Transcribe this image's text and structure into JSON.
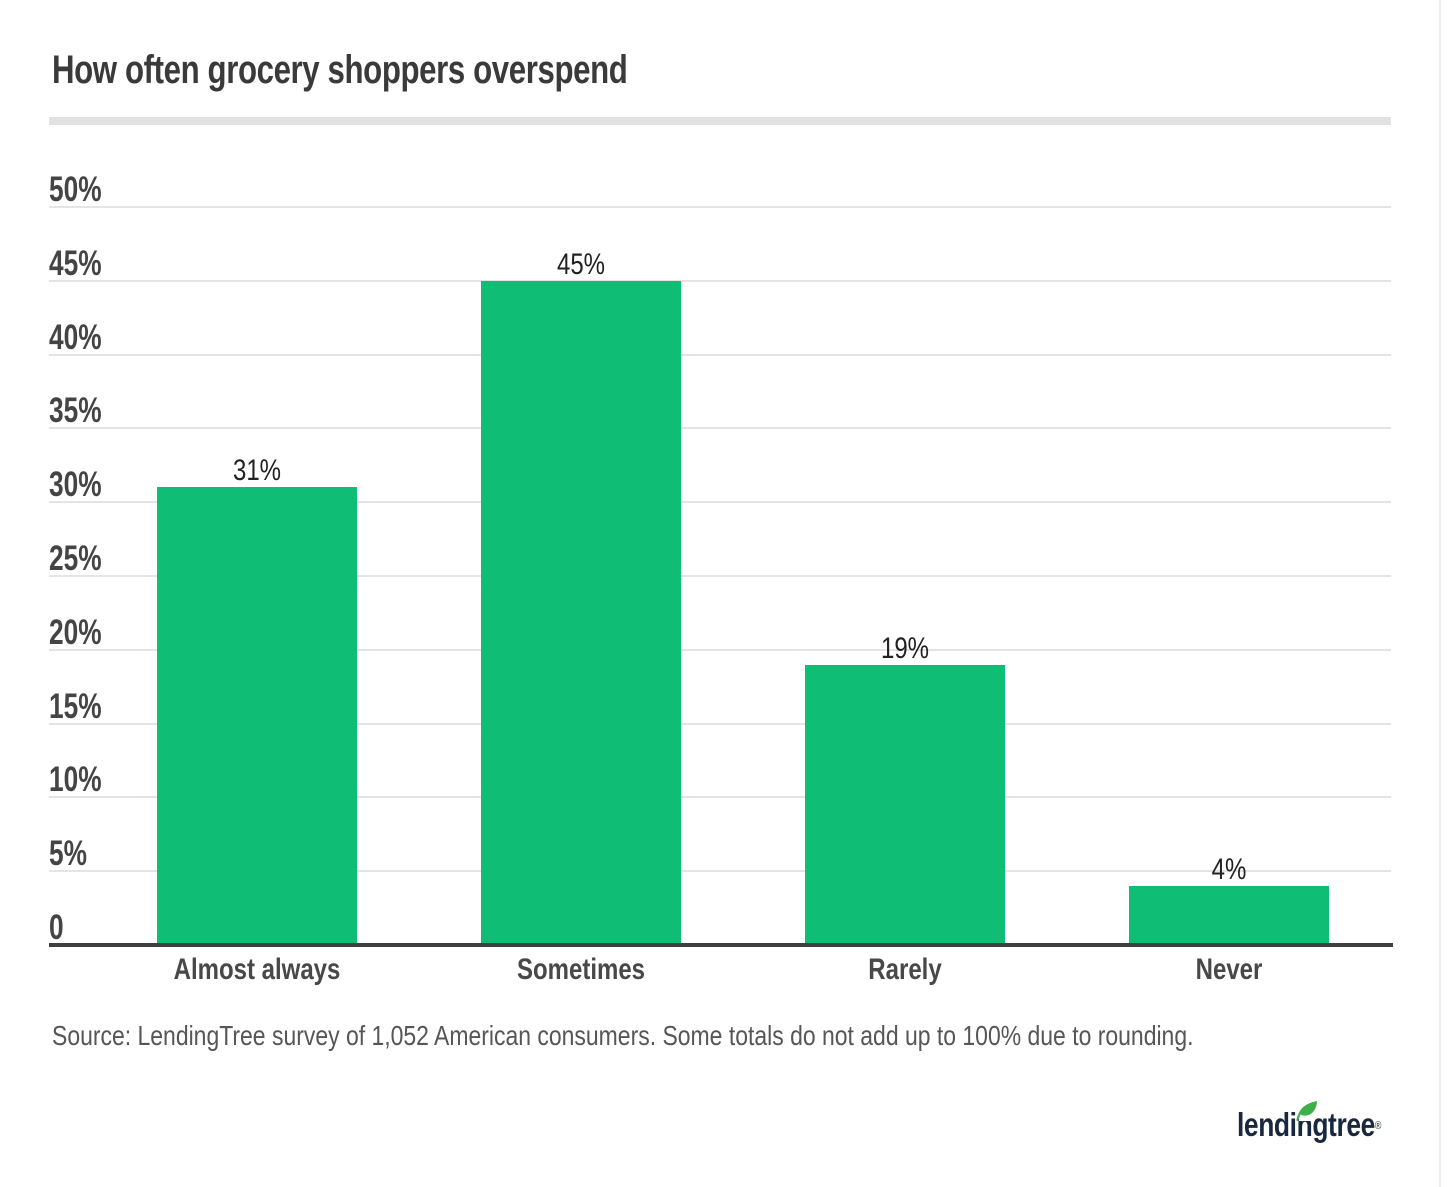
{
  "title": "How often grocery shoppers overspend",
  "source": "Source: LendingTree survey of 1,052 American consumers. Some totals do not add up to 100% due to rounding.",
  "logo": {
    "text": "lendingtree",
    "registered": "®"
  },
  "colors": {
    "bar": "#0fbd74",
    "title": "#3a3a3a",
    "axis_label": "#444444",
    "value_label": "#222222",
    "category_label": "#484848",
    "source_text": "#565656",
    "gridline": "#e4e4e4",
    "divider": "#e2e2e2",
    "baseline": "#3f3f3f",
    "page_edge": "#ededed",
    "logo_navy": "#19273f",
    "leaf_green": "#3eb049",
    "background": "#ffffff"
  },
  "chart_data": {
    "type": "bar",
    "categories": [
      "Almost always",
      "Sometimes",
      "Rarely",
      "Never"
    ],
    "values": [
      31,
      45,
      19,
      4
    ],
    "value_labels": [
      "31%",
      "45%",
      "19%",
      "4%"
    ],
    "title": "How often grocery shoppers overspend",
    "xlabel": "",
    "ylabel": "",
    "ylim": [
      0,
      50
    ],
    "ytick_step": 5,
    "ytick_labels": [
      "50%",
      "45%",
      "40%",
      "35%",
      "30%",
      "25%",
      "20%",
      "15%",
      "10%",
      "5%",
      "0"
    ],
    "grid": "horizontal",
    "legend": "none",
    "bar_color": "#0fbd74"
  }
}
